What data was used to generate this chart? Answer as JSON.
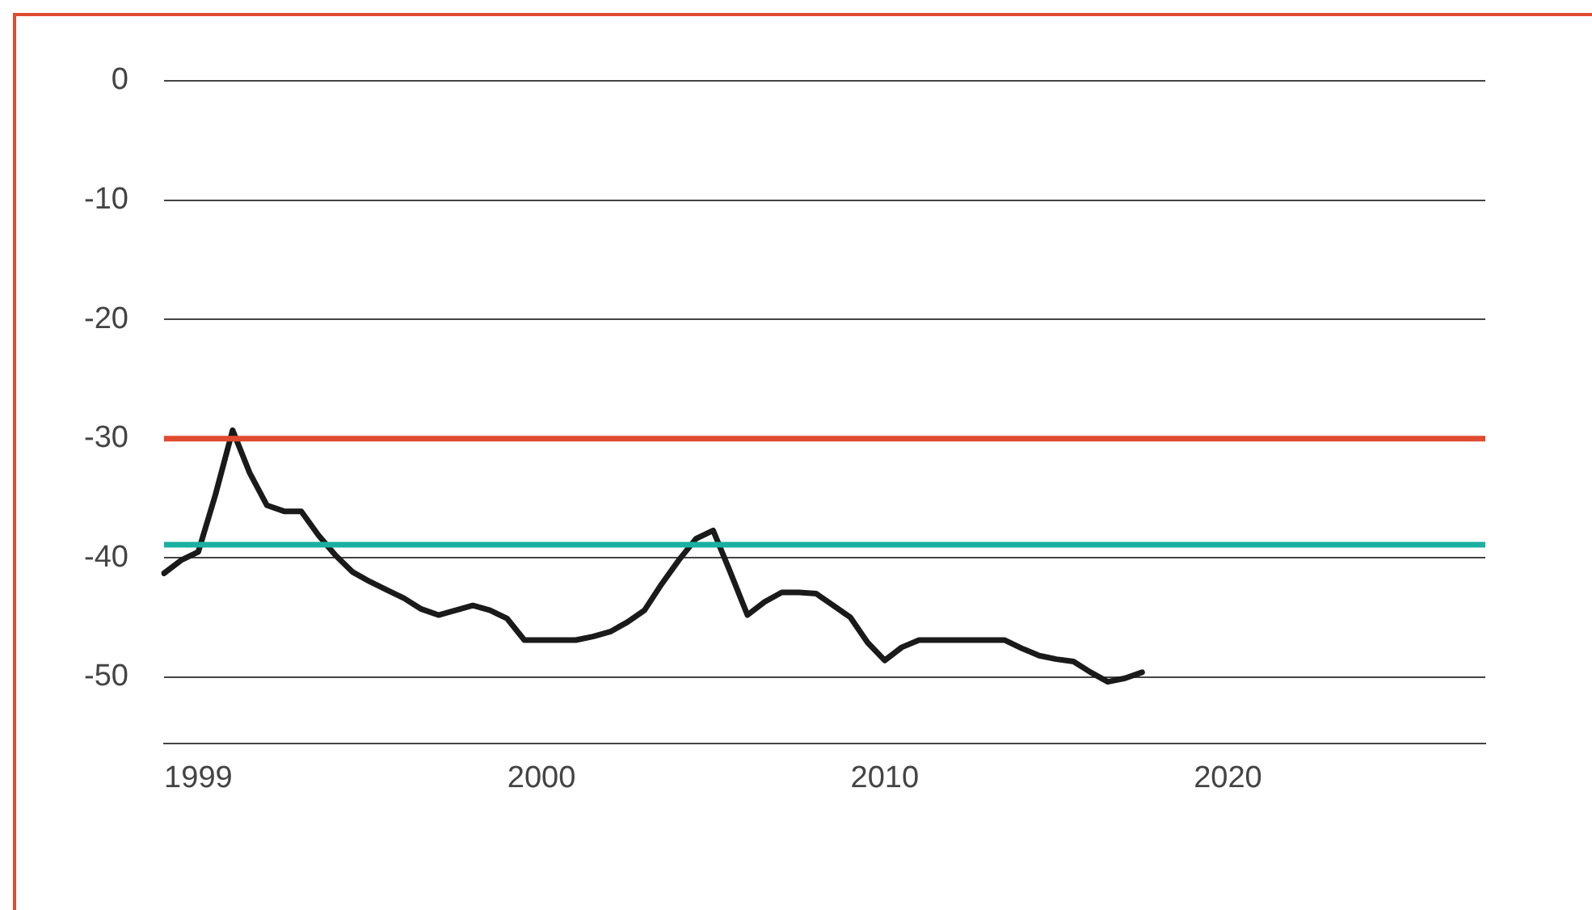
{
  "chart_data": {
    "type": "line",
    "categories": [
      null,
      null,
      "1999",
      null,
      null,
      null,
      null,
      null,
      null,
      null,
      null,
      null,
      null,
      null,
      null,
      null,
      null,
      null,
      null,
      null,
      null,
      null,
      "2000",
      null,
      null,
      null,
      null,
      null,
      null,
      null,
      null,
      null,
      null,
      null,
      null,
      null,
      null,
      null,
      null,
      null,
      null,
      null,
      "2010",
      null,
      null,
      null,
      null,
      null,
      null,
      null,
      null,
      null,
      null,
      null,
      null,
      null,
      null,
      null,
      null,
      null,
      null,
      null,
      "2020",
      null,
      null,
      null,
      null,
      null,
      null,
      null,
      null,
      null,
      null,
      null,
      null,
      null,
      null,
      null
    ],
    "series": [
      {
        "color": "#1a1a1a",
        "values": [
          -41.3,
          -40.2,
          -39.5,
          -34.7,
          -29.3,
          -32.9,
          -35.6,
          -36.1,
          -36.1,
          -38.1,
          -39.8,
          -41.2,
          -42.0,
          -42.7,
          -43.4,
          -44.3,
          -44.8,
          -44.4,
          -44.0,
          -44.4,
          -45.1,
          -46.9,
          -46.9,
          -46.9,
          -46.9,
          -46.6,
          -46.2,
          -45.4,
          -44.4,
          -42.2,
          -40.2,
          -38.4,
          -37.7,
          -41.2,
          -44.8,
          -43.7,
          -42.9,
          -42.9,
          -43.0,
          -44.0,
          -45.0,
          -47.1,
          -48.6,
          -47.5,
          -46.9,
          -46.9,
          -46.9,
          -46.9,
          -46.9,
          -46.9,
          -47.6,
          -48.2,
          -48.5,
          -48.7,
          -49.6,
          -50.4,
          -50.1,
          -49.6,
          null,
          null,
          null,
          null,
          null,
          null,
          null,
          null,
          null,
          null,
          null,
          null,
          null,
          null,
          null,
          null,
          null,
          null,
          null,
          null
        ]
      }
    ],
    "ylim": [
      -55.6,
      0
    ],
    "yticks": [
      0,
      -10,
      -20,
      -30,
      -40,
      -50
    ],
    "ref_lines": [
      {
        "axis": "y",
        "value": -30.0,
        "color": "#e04a2f"
      },
      {
        "axis": "y",
        "value": -38.9,
        "color": "#1ab0a0"
      }
    ],
    "grid": "y",
    "legend": false,
    "marker": "none",
    "line_style": "solid"
  }
}
